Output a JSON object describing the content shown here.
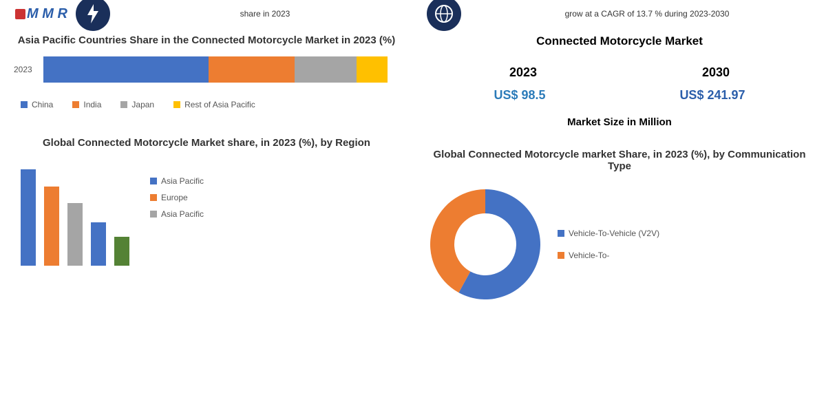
{
  "top": {
    "left_text": "share in 2023",
    "right_text": "grow at a CAGR of 13.7 % during 2023-2030",
    "logo_text": "M M R"
  },
  "hbar": {
    "title": "Asia Pacific Countries Share in the Connected Motorcycle Market in 2023 (%)",
    "row_label": "2023",
    "segments": [
      {
        "name": "China",
        "value": 48,
        "color": "#4472c4"
      },
      {
        "name": "India",
        "value": 25,
        "color": "#ed7d31"
      },
      {
        "name": "Japan",
        "value": 18,
        "color": "#a5a5a5"
      },
      {
        "name": "Rest of Asia Pacific",
        "value": 9,
        "color": "#ffc000"
      }
    ]
  },
  "market": {
    "title": "Connected Motorcycle Market",
    "year1": "2023",
    "year2": "2030",
    "value1": "US$ 98.5",
    "value2": "US$ 241.97",
    "value1_color": "#2b7bb9",
    "value2_color": "#2b5eaa",
    "size_label": "Market Size in Million"
  },
  "vbar": {
    "title": "Global Connected Motorcycle Market share, in 2023 (%), by Region",
    "bars": [
      {
        "value": 100,
        "color": "#4472c4"
      },
      {
        "value": 82,
        "color": "#ed7d31"
      },
      {
        "value": 65,
        "color": "#a5a5a5"
      },
      {
        "value": 45,
        "color": "#4472c4"
      },
      {
        "value": 30,
        "color": "#548235"
      }
    ],
    "legend": [
      {
        "name": "Asia Pacific",
        "color": "#4472c4"
      },
      {
        "name": "Europe",
        "color": "#ed7d31"
      },
      {
        "name": "Asia Pacific",
        "color": "#a5a5a5"
      }
    ]
  },
  "donut": {
    "title": "Global Connected Motorcycle market Share, in 2023 (%), by Communication Type",
    "slices": [
      {
        "name": "Vehicle-To-Vehicle (V2V)",
        "value": 58,
        "color": "#4472c4"
      },
      {
        "name": "Vehicle-To-",
        "value": 42,
        "color": "#ed7d31"
      }
    ],
    "inner_radius": 45,
    "outer_radius": 80
  }
}
